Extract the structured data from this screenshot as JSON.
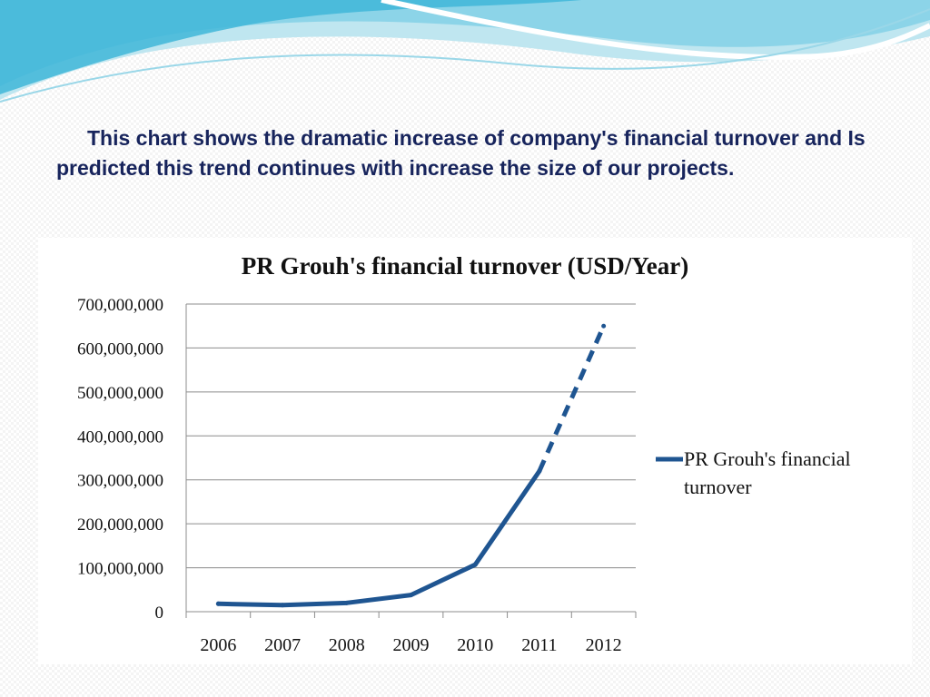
{
  "slide": {
    "intro_text": "This chart shows the dramatic increase of company's financial turnover and Is predicted this trend continues with increase the size of our projects."
  },
  "colors": {
    "series_line": "#1f5591",
    "heading_text": "#17245c",
    "grid": "#8c8c8c",
    "wave_light": "#bfe6f0",
    "wave_dark": "#3fb6d8"
  },
  "chart_data": {
    "type": "line",
    "title": "PR Grouh's financial turnover (USD/Year)",
    "x": [
      "2006",
      "2007",
      "2008",
      "2009",
      "2010",
      "2011",
      "2012"
    ],
    "series": [
      {
        "name": "PR Grouh's financial turnover",
        "values": [
          18000000,
          15000000,
          20000000,
          38000000,
          107000000,
          320000000,
          650000000
        ],
        "projected_from_index": 5,
        "color": "#1f5591"
      }
    ],
    "yticks": [
      "0",
      "100,000,000",
      "200,000,000",
      "300,000,000",
      "400,000,000",
      "500,000,000",
      "600,000,000",
      "700,000,000"
    ],
    "ylim": [
      0,
      700000000
    ],
    "grid": true,
    "legend_position": "right",
    "xlabel": "",
    "ylabel": ""
  }
}
